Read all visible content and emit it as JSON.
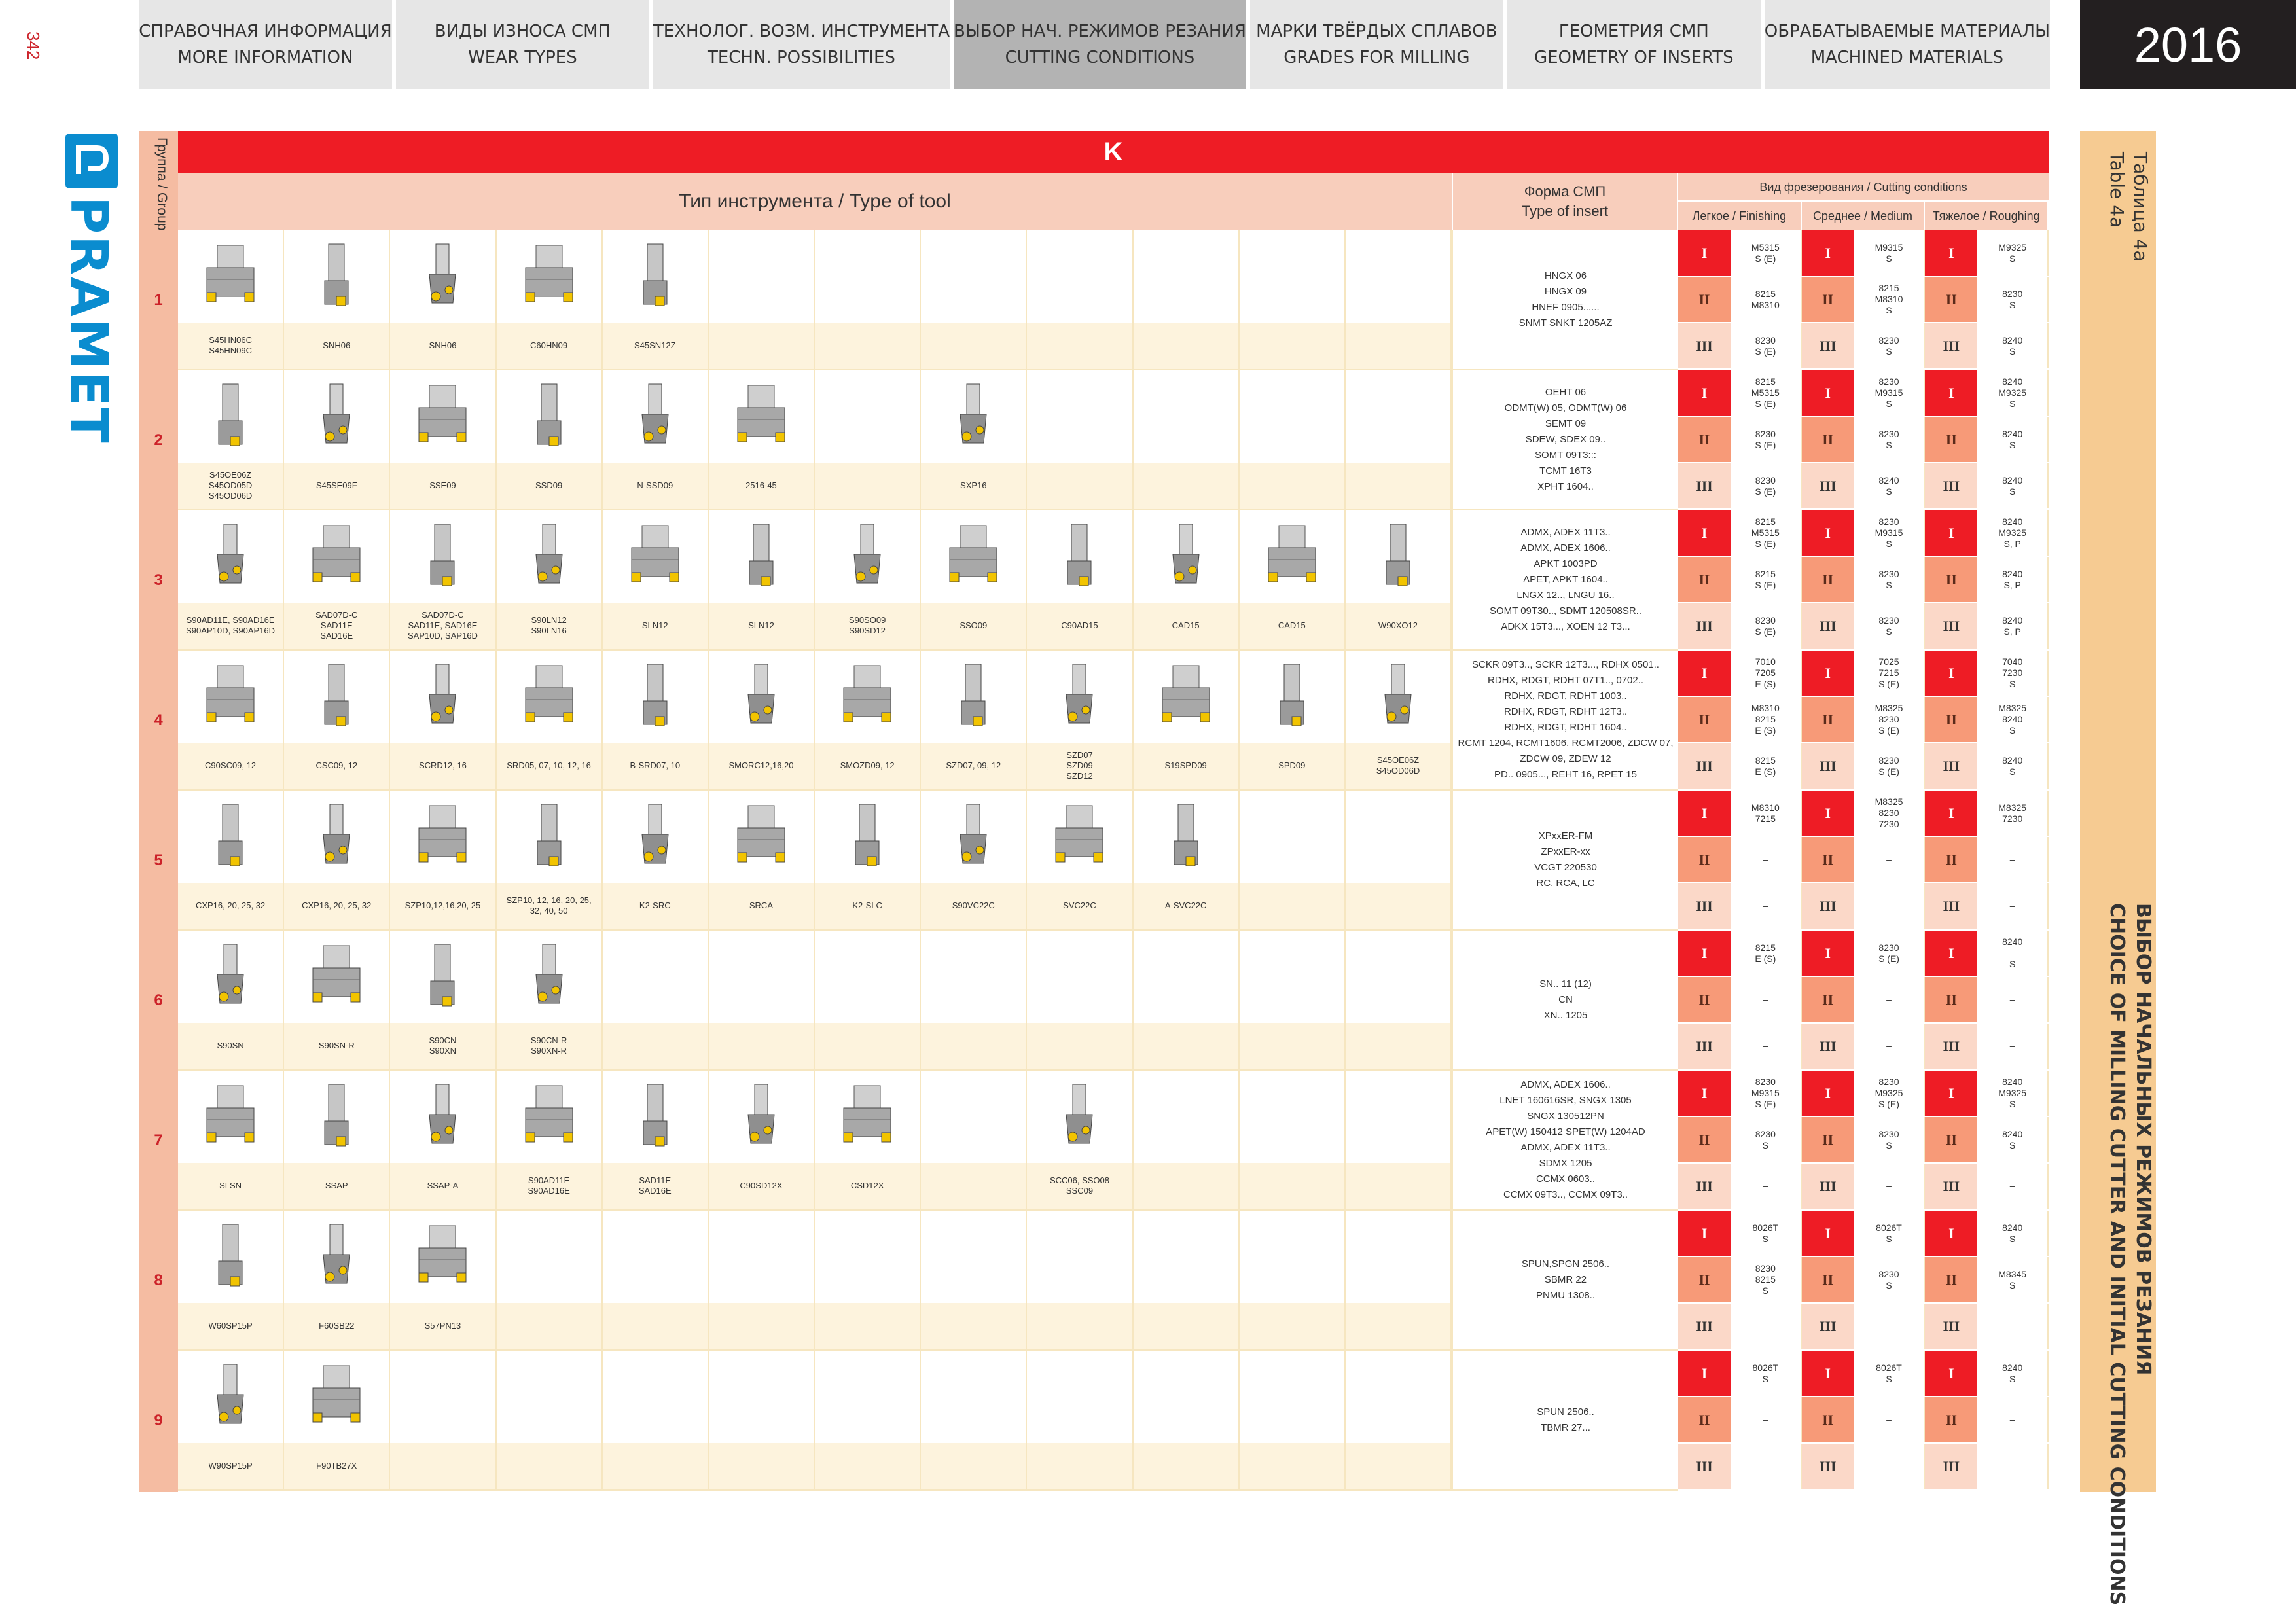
{
  "page_number": "342",
  "year": "2016",
  "nav": [
    {
      "ru": "СПРАВОЧНАЯ ИНФОРМАЦИЯ",
      "en": "MORE INFORMATION"
    },
    {
      "ru": "ВИДЫ ИЗНОСА СМП",
      "en": "WEAR TYPES"
    },
    {
      "ru": "ТЕХНОЛОГ. ВОЗМ. ИНСТРУМЕНТА",
      "en": "TECHN. POSSIBILITIES"
    },
    {
      "ru": "ВЫБОР НАЧ. РЕЖИМОВ РЕЗАНИЯ",
      "en": "CUTTING CONDITIONS"
    },
    {
      "ru": "МАРКИ ТВЁРДЫХ СПЛАВОВ",
      "en": "GRADES FOR MILLING"
    },
    {
      "ru": "ГЕОМЕТРИЯ СМП",
      "en": "GEOMETRY OF INSERTS"
    },
    {
      "ru": "ОБРАБАТЫВАЕМЫЕ МАТЕРИАЛЫ",
      "en": "MACHINED MATERIALS"
    }
  ],
  "logo_text": "PRAMET",
  "table_caption": {
    "ru": "Таблица 4a",
    "en": "Table 4a"
  },
  "band_title": {
    "ru": "ВЫБОР НАЧАЛЬНЫХ РЕЖИМОВ РЕЗАНИЯ",
    "en": "CHOICE OF MILLING CUTTER AND INITIAL CUTTING CONDITIONS"
  },
  "header": {
    "group_label": "Группа / Group",
    "material": "K",
    "tool_type": "Тип инструмента / Type of tool",
    "insert_ru": "Форма СМП",
    "insert_en": "Type of insert",
    "cutting": "Вид фрезерования / Cutting conditions",
    "finishing": "Легкое / Finishing",
    "medium": "Среднее / Medium",
    "roughing": "Тяжелое / Roughing"
  },
  "roman": [
    "I",
    "II",
    "III"
  ],
  "groups": [
    {
      "num": "1",
      "tools": [
        "S45HN06C\nS45HN09C",
        "SNH06",
        "SNH06",
        "C60HN09",
        "S45SN12Z",
        "",
        "",
        "",
        "",
        "",
        "",
        ""
      ],
      "inserts": [
        "HNGX 06",
        "HNGX 09",
        "HNEF 0905......",
        "SNMT SNKT 1205AZ"
      ],
      "grades": [
        [
          "M5315\nS (E)",
          "M9315\nS",
          "M9325\nS"
        ],
        [
          "8215\nM8310",
          "8215\nM8310\nS",
          "8230\nS"
        ],
        [
          "8230\nS (E)",
          "8230\nS",
          "8240\nS"
        ]
      ]
    },
    {
      "num": "2",
      "tools": [
        "S45OE06Z\nS45OD05D\nS45OD06D",
        "S45SE09F",
        "SSE09",
        "SSD09",
        "N-SSD09",
        "2516-45",
        "",
        "SXP16",
        "",
        "",
        "",
        ""
      ],
      "inserts": [
        "OEHT 06",
        "ODMT(W) 05, ODMT(W) 06",
        "SEMT 09",
        "SDEW, SDEX 09..",
        "SOMT 09T3:::",
        "TCMT 16T3",
        "XPHT 1604.."
      ],
      "grades": [
        [
          "8215\nM5315\nS (E)",
          "8230\nM9315\nS",
          "8240\nM9325\nS"
        ],
        [
          "8230\nS (E)",
          "8230\nS",
          "8240\nS"
        ],
        [
          "8230\nS (E)",
          "8240\nS",
          "8240\nS"
        ]
      ]
    },
    {
      "num": "3",
      "tools": [
        "S90AD11E, S90AD16E\nS90AP10D, S90AP16D",
        "SAD07D-C\nSAD11E\nSAD16E",
        "SAD07D-C\nSAD11E, SAD16E\nSAP10D, SAP16D",
        "S90LN12\nS90LN16",
        "SLN12",
        "SLN12",
        "S90SO09\nS90SD12",
        "SSO09",
        "C90AD15",
        "CAD15",
        "CAD15",
        "W90XO12"
      ],
      "inserts": [
        "ADMX, ADEX 11T3..",
        "ADMX, ADEX 1606..",
        "APKT 1003PD",
        "APET, APKT 1604..",
        "LNGX 12.., LNGU 16..",
        "SOMT 09T30.., SDMT 120508SR..",
        "ADKX 15T3..., XOEN 12 T3..."
      ],
      "grades": [
        [
          "8215\nM5315\nS (E)",
          "8230\nM9315\nS",
          "8240\nM9325\nS, P"
        ],
        [
          "8215\nS (E)",
          "8230\nS",
          "8240\nS, P"
        ],
        [
          "8230\nS (E)",
          "8230\nS",
          "8240\nS, P"
        ]
      ]
    },
    {
      "num": "4",
      "tools": [
        "C90SC09, 12",
        "CSC09, 12",
        "SCRD12, 16",
        "SRD05, 07, 10, 12, 16",
        "B-SRD07, 10",
        "SMORC12,16,20",
        "SMOZD09, 12",
        "SZD07, 09, 12",
        "SZD07\nSZD09\nSZD12",
        "S19SPD09",
        "SPD09",
        "S45OE06Z\nS45OD06D"
      ],
      "inserts": [
        "SCKR 09T3.., SCKR 12T3..., RDHX 0501..",
        "RDHX, RDGT, RDHT 07T1.., 0702..",
        "RDHX, RDGT, RDHT 1003..",
        "RDHX, RDGT, RDHT 12T3..",
        "RDHX, RDGT, RDHT 1604..",
        "RCMT 1204, RCMT1606, RCMT2006, ZDCW 07,",
        "ZDCW 09, ZDEW 12",
        "PD.. 0905..., REHT 16, RPET 15"
      ],
      "grades": [
        [
          "7010\n7205\nE (S)",
          "7025\n7215\nS (E)",
          "7040\n7230\nS"
        ],
        [
          "M8310\n8215\nE (S)",
          "M8325\n8230\nS (E)",
          "M8325\n8240\nS"
        ],
        [
          "8215\nE (S)",
          "8230\nS (E)",
          "8240\nS"
        ]
      ]
    },
    {
      "num": "5",
      "tools": [
        "CXP16, 20, 25, 32",
        "CXP16, 20, 25, 32",
        "SZP10,12,16,20, 25",
        "SZP10, 12, 16, 20, 25,\n32, 40, 50",
        "K2-SRC",
        "SRCA",
        "K2-SLC",
        "S90VC22C",
        "SVC22C",
        "A-SVC22C",
        "",
        ""
      ],
      "inserts": [
        "XPxxER-FM",
        "ZPxxER-xx",
        "VCGT 220530",
        "RC, RCA, LC"
      ],
      "grades": [
        [
          "M8310\n7215",
          "M8325\n8230\n7230",
          "M8325\n7230"
        ],
        [
          "–",
          "–",
          "–"
        ],
        [
          "–",
          "",
          "–"
        ]
      ]
    },
    {
      "num": "6",
      "tools": [
        "S90SN",
        "S90SN-R",
        "S90CN\nS90XN",
        "S90CN-R\nS90XN-R",
        "",
        "",
        "",
        "",
        "",
        "",
        "",
        ""
      ],
      "inserts": [
        "SN.. 11 (12)",
        "CN",
        "XN.. 1205"
      ],
      "grades": [
        [
          "8215\nE (S)",
          "8230\nS (E)",
          "8240\n\nS"
        ],
        [
          "–",
          "–",
          "–"
        ],
        [
          "–",
          "–",
          "–"
        ]
      ]
    },
    {
      "num": "7",
      "tools": [
        "SLSN",
        "SSAP",
        "SSAP-A",
        "S90AD11E\nS90AD16E",
        "SAD11E\nSAD16E",
        "C90SD12X",
        "CSD12X",
        "",
        "SCC06, SSO08\nSSC09",
        "",
        "",
        ""
      ],
      "inserts": [
        "ADMX, ADEX 1606..",
        "LNET 160616SR, SNGX 1305",
        "SNGX 130512PN",
        "APET(W) 150412 SPET(W) 1204AD",
        "ADMX, ADEX 11T3..",
        "SDMX 1205",
        "CCMX 0603..",
        "CCMX 09T3.., CCMX 09T3.."
      ],
      "grades": [
        [
          "8230\nM9315\nS (E)",
          "8230\nM9325\nS (E)",
          "8240\nM9325\nS"
        ],
        [
          "8230\nS",
          "8230\nS",
          "8240\nS"
        ],
        [
          "–",
          "–",
          "–"
        ]
      ]
    },
    {
      "num": "8",
      "tools": [
        "W60SP15P",
        "F60SB22",
        "S57PN13",
        "",
        "",
        "",
        "",
        "",
        "",
        "",
        "",
        ""
      ],
      "inserts": [
        "SPUN,SPGN 2506..",
        "SBMR 22",
        "PNMU 1308.."
      ],
      "grades": [
        [
          "8026T\nS",
          "8026T\nS",
          "8240\nS"
        ],
        [
          "8230\n8215\nS",
          "8230\nS",
          "M8345\nS"
        ],
        [
          "–",
          "–",
          "–"
        ]
      ]
    },
    {
      "num": "9",
      "tools": [
        "W90SP15P",
        "F90TB27X",
        "",
        "",
        "",
        "",
        "",
        "",
        "",
        "",
        "",
        ""
      ],
      "inserts": [
        "SPUN 2506..",
        "TBMR 27..."
      ],
      "grades": [
        [
          "8026T\nS",
          "8026T\nS",
          "8240\nS"
        ],
        [
          "–",
          "–",
          "–"
        ],
        [
          "–",
          "–",
          "–"
        ]
      ]
    }
  ],
  "colors": {
    "red": "#ee1c25",
    "header_pink": "#f8cebc",
    "group_col": "#f5bca2",
    "band": "#f6cb92",
    "level2": "#f79a78",
    "level3": "#fbd8c8",
    "cream": "#fdf3dd",
    "logo_blue": "#0a8ccf"
  }
}
